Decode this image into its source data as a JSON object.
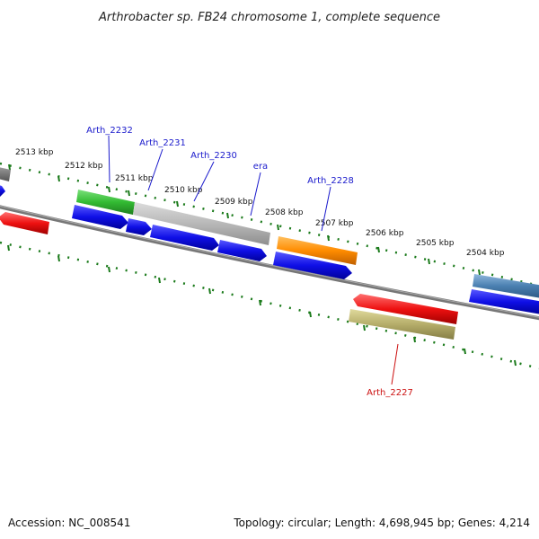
{
  "title": "Arthrobacter sp. FB24 chromosome 1, complete sequence",
  "footer": {
    "accession": "Accession: NC_008541",
    "summary": "Topology: circular; Length: 4,698,945 bp; Genes: 4,214"
  },
  "ticks": [
    "2513 kbp",
    "2512 kbp",
    "2511 kbp",
    "2510 kbp",
    "2509 kbp",
    "2508 kbp",
    "2507 kbp",
    "2506 kbp",
    "2505 kbp",
    "2504 kbp"
  ],
  "gene_labels": {
    "arth_2232": "Arth_2232",
    "arth_2231": "Arth_2231",
    "arth_2230": "Arth_2230",
    "era": "era",
    "arth_2228": "Arth_2228",
    "arth_2227": "Arth_2227"
  },
  "colors": {
    "backbone": "#777777",
    "tick": "#1a7a1a",
    "forward_label": "#1a1acc",
    "reverse_label": "#cc1111",
    "blue_gene": "#1010e0",
    "green_gene": "#33bb33",
    "grey_gene": "#b8b8b8",
    "orange_gene": "#ff8c00",
    "red_gene": "#ee1111",
    "olive_gene": "#b5ad6a",
    "steel_gene": "#4a7fb0"
  }
}
